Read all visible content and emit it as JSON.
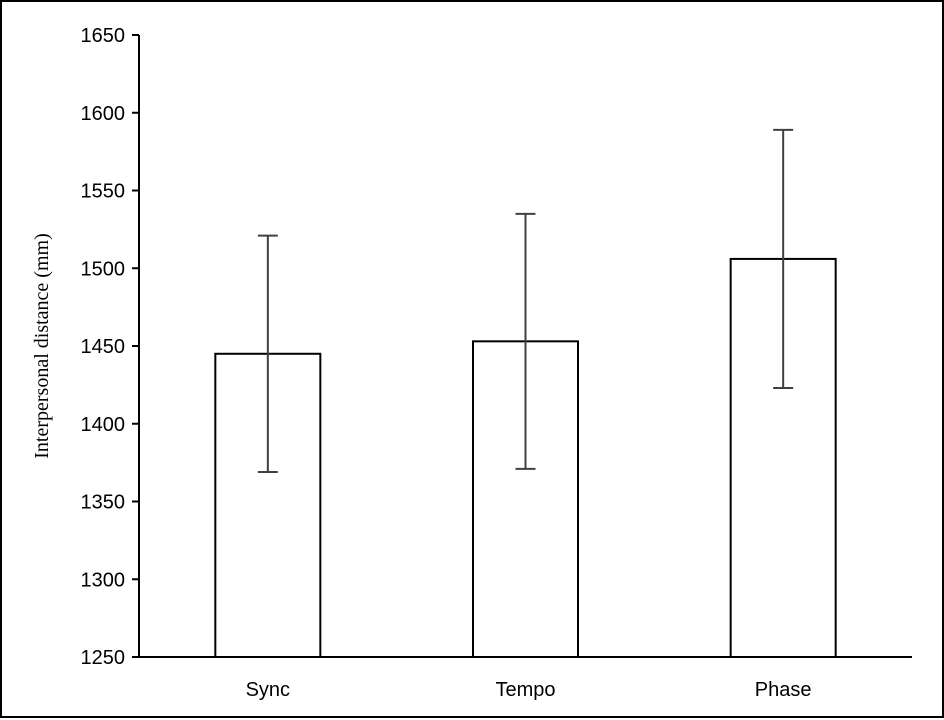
{
  "chart_data": {
    "type": "bar",
    "title": "",
    "xlabel": "",
    "ylabel": "Interpersonal distance (mm)",
    "categories": [
      "Sync",
      "Tempo",
      "Phase"
    ],
    "values": [
      1445,
      1453,
      1506
    ],
    "error_bars": {
      "upper": [
        1521,
        1535,
        1589
      ],
      "lower": [
        1369,
        1371,
        1423
      ]
    },
    "ylim": [
      1250,
      1650
    ],
    "yticks": [
      1250,
      1300,
      1350,
      1400,
      1450,
      1500,
      1550,
      1600,
      1650
    ],
    "grid": false,
    "legend": "none",
    "colors": {
      "bar_fill": "#ffffff",
      "bar_stroke": "#000000",
      "error_bar": "#404040",
      "axis": "#000000"
    }
  }
}
